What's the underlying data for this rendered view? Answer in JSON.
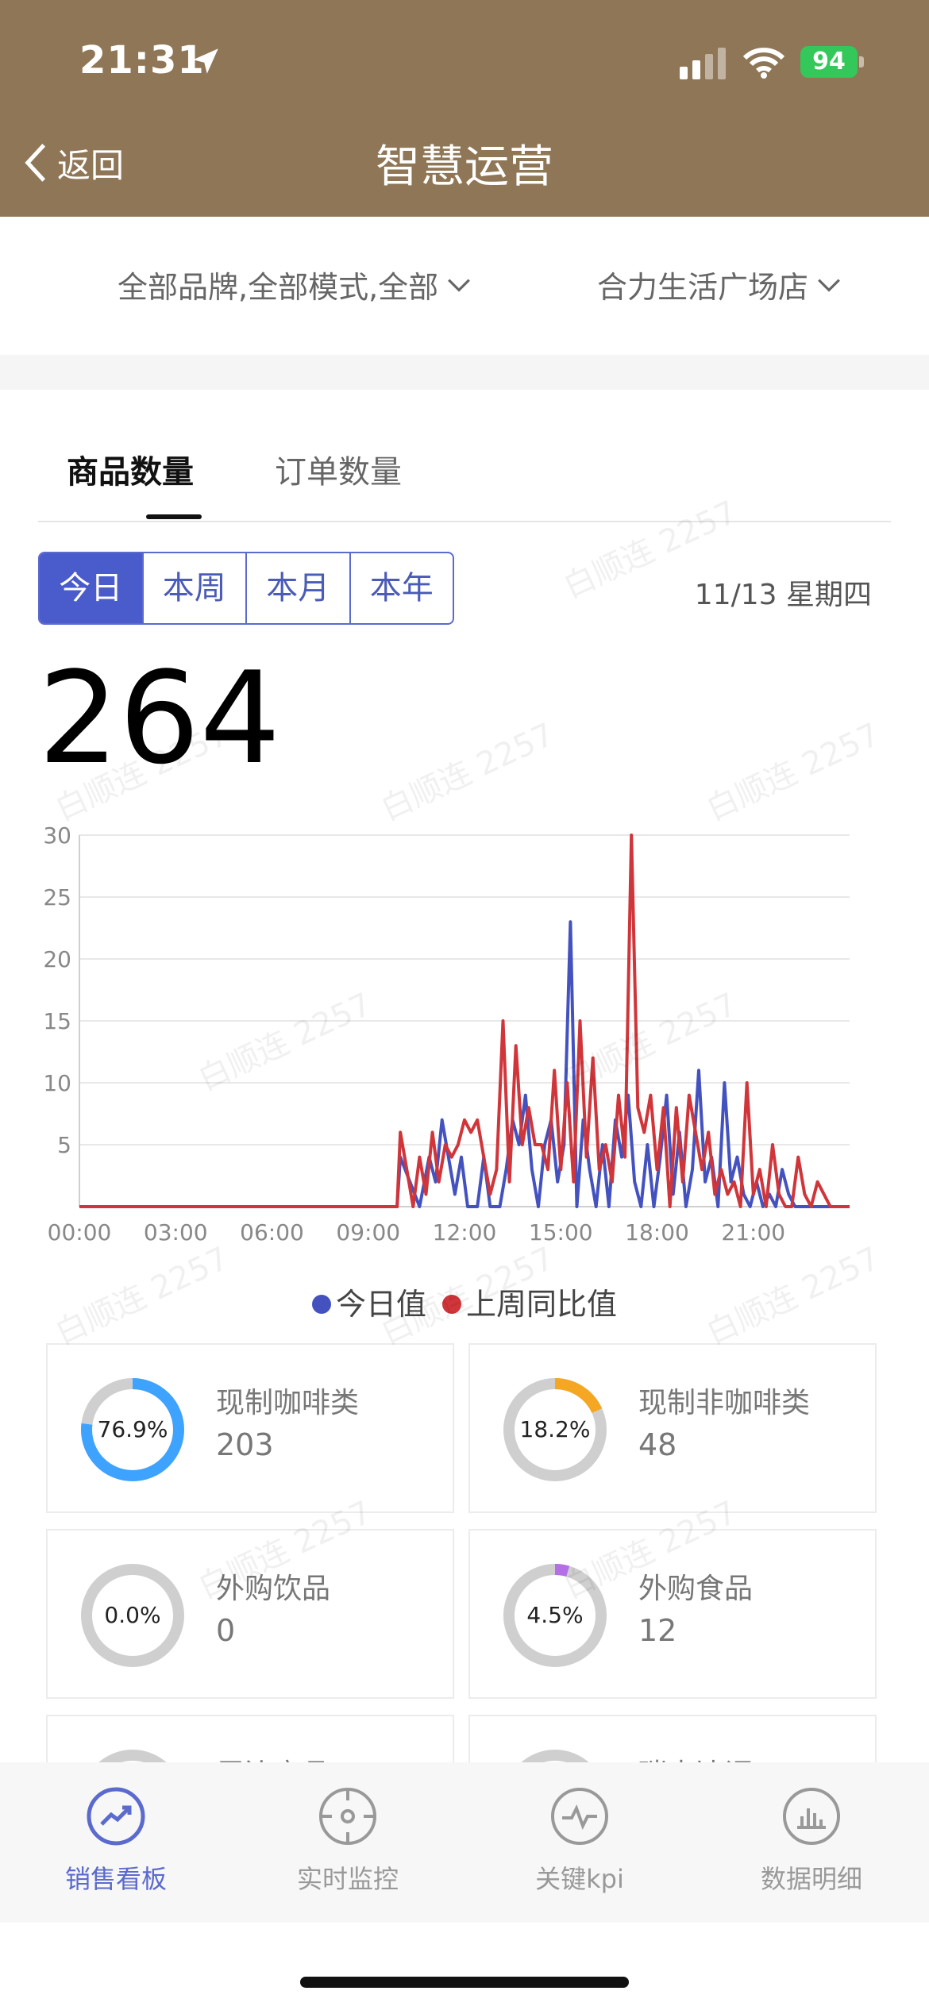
{
  "status_bar": {
    "time": "21:31",
    "battery": "94"
  },
  "header": {
    "back_label": "返回",
    "title": "智慧运营"
  },
  "filters": {
    "brand_mode": "全部品牌,全部模式,全部",
    "store": "合力生活广场店"
  },
  "tabs": [
    {
      "label": "商品数量",
      "active": true
    },
    {
      "label": "订单数量",
      "active": false
    }
  ],
  "periods": [
    {
      "label": "今日",
      "active": true
    },
    {
      "label": "本周"
    },
    {
      "label": "本月"
    },
    {
      "label": "本年"
    }
  ],
  "date_label": "11/13 星期四",
  "total": "264",
  "chart_data": {
    "type": "line",
    "ylim": [
      0,
      30
    ],
    "y_ticks": [
      5,
      10,
      15,
      20,
      25,
      30
    ],
    "x_ticks": [
      "00:00",
      "03:00",
      "06:00",
      "09:00",
      "12:00",
      "15:00",
      "18:00",
      "21:00"
    ],
    "x_range_hours": [
      0,
      24
    ],
    "grid": true,
    "legend_position": "bottom",
    "series": [
      {
        "name": "今日值",
        "color": "#4452c0",
        "points": [
          [
            0,
            0
          ],
          [
            9.9,
            0
          ],
          [
            10,
            4
          ],
          [
            10.3,
            2
          ],
          [
            10.6,
            0
          ],
          [
            10.9,
            4
          ],
          [
            11.1,
            2
          ],
          [
            11.3,
            7
          ],
          [
            11.5,
            4
          ],
          [
            11.7,
            1
          ],
          [
            11.9,
            4
          ],
          [
            12.1,
            0
          ],
          [
            12.4,
            0
          ],
          [
            12.6,
            4
          ],
          [
            12.8,
            0
          ],
          [
            13.1,
            0
          ],
          [
            13.3,
            3
          ],
          [
            13.5,
            7
          ],
          [
            13.7,
            5
          ],
          [
            13.9,
            9
          ],
          [
            14.1,
            3
          ],
          [
            14.3,
            0
          ],
          [
            14.5,
            5
          ],
          [
            14.7,
            7
          ],
          [
            14.9,
            2
          ],
          [
            15.1,
            5
          ],
          [
            15.3,
            23
          ],
          [
            15.5,
            0
          ],
          [
            15.7,
            7
          ],
          [
            15.9,
            3
          ],
          [
            16.1,
            0
          ],
          [
            16.3,
            5
          ],
          [
            16.5,
            0
          ],
          [
            16.7,
            7
          ],
          [
            16.9,
            4
          ],
          [
            17.1,
            9
          ],
          [
            17.3,
            2
          ],
          [
            17.5,
            0
          ],
          [
            17.7,
            5
          ],
          [
            17.9,
            0
          ],
          [
            18.1,
            4
          ],
          [
            18.3,
            9
          ],
          [
            18.5,
            1
          ],
          [
            18.7,
            6
          ],
          [
            18.9,
            0
          ],
          [
            19.1,
            3
          ],
          [
            19.3,
            11
          ],
          [
            19.5,
            2
          ],
          [
            19.7,
            4
          ],
          [
            19.9,
            0
          ],
          [
            20.1,
            10
          ],
          [
            20.3,
            2
          ],
          [
            20.5,
            4
          ],
          [
            20.7,
            1
          ],
          [
            20.9,
            0
          ],
          [
            21.1,
            2
          ],
          [
            21.3,
            0
          ],
          [
            21.5,
            1
          ],
          [
            21.7,
            0
          ],
          [
            21.9,
            3
          ],
          [
            22.1,
            1
          ],
          [
            22.3,
            0
          ],
          [
            24,
            0
          ]
        ]
      },
      {
        "name": "上周同比值",
        "color": "#d0353a",
        "points": [
          [
            0,
            0
          ],
          [
            9.9,
            0
          ],
          [
            10,
            6
          ],
          [
            10.2,
            3
          ],
          [
            10.4,
            0
          ],
          [
            10.6,
            4
          ],
          [
            10.8,
            1
          ],
          [
            11,
            6
          ],
          [
            11.2,
            2
          ],
          [
            11.4,
            5
          ],
          [
            11.6,
            4
          ],
          [
            11.8,
            5
          ],
          [
            12,
            7
          ],
          [
            12.2,
            6
          ],
          [
            12.4,
            7
          ],
          [
            12.6,
            4
          ],
          [
            12.8,
            1
          ],
          [
            13,
            3
          ],
          [
            13.2,
            15
          ],
          [
            13.4,
            2
          ],
          [
            13.6,
            13
          ],
          [
            13.8,
            5
          ],
          [
            14,
            8
          ],
          [
            14.2,
            5
          ],
          [
            14.4,
            5
          ],
          [
            14.6,
            3
          ],
          [
            14.8,
            11
          ],
          [
            15,
            3
          ],
          [
            15.2,
            10
          ],
          [
            15.4,
            2
          ],
          [
            15.6,
            15
          ],
          [
            15.8,
            4
          ],
          [
            16,
            12
          ],
          [
            16.2,
            3
          ],
          [
            16.4,
            5
          ],
          [
            16.6,
            2
          ],
          [
            16.8,
            9
          ],
          [
            17,
            4
          ],
          [
            17.2,
            30
          ],
          [
            17.4,
            8
          ],
          [
            17.6,
            6
          ],
          [
            17.8,
            9
          ],
          [
            18,
            3
          ],
          [
            18.2,
            8
          ],
          [
            18.4,
            0
          ],
          [
            18.6,
            8
          ],
          [
            18.8,
            2
          ],
          [
            19,
            9
          ],
          [
            19.2,
            6
          ],
          [
            19.4,
            3
          ],
          [
            19.6,
            6
          ],
          [
            19.8,
            1
          ],
          [
            20,
            3
          ],
          [
            20.2,
            1
          ],
          [
            20.4,
            2
          ],
          [
            20.6,
            0
          ],
          [
            20.8,
            10
          ],
          [
            21,
            1
          ],
          [
            21.2,
            3
          ],
          [
            21.4,
            0
          ],
          [
            21.6,
            5
          ],
          [
            21.8,
            1
          ],
          [
            22,
            0
          ],
          [
            22.2,
            0
          ],
          [
            22.4,
            4
          ],
          [
            22.6,
            1
          ],
          [
            22.8,
            0
          ],
          [
            23,
            2
          ],
          [
            23.2,
            1
          ],
          [
            23.4,
            0
          ],
          [
            24,
            0
          ]
        ]
      }
    ]
  },
  "categories": [
    {
      "name": "现制咖啡类",
      "count": "203",
      "percent_text": "76.9%",
      "fraction": 0.769,
      "color": "#3ea3ff"
    },
    {
      "name": "现制非咖啡类",
      "count": "48",
      "percent_text": "18.2%",
      "fraction": 0.182,
      "color": "#f5a623"
    },
    {
      "name": "外购饮品",
      "count": "0",
      "percent_text": "0.0%",
      "fraction": 0.0,
      "color": "#cccccc"
    },
    {
      "name": "外购食品",
      "count": "12",
      "percent_text": "4.5%",
      "fraction": 0.045,
      "color": "#b46ee6"
    },
    {
      "name": "周边商品",
      "count": "",
      "percent_text": "",
      "fraction": 0.0,
      "color": "#e09090"
    },
    {
      "name": "瑞幸达调",
      "count": "",
      "percent_text": "",
      "fraction": 0.0,
      "color": "#cccccc"
    }
  ],
  "bottom_nav": [
    {
      "label": "销售看板",
      "icon": "trend-icon",
      "active": true
    },
    {
      "label": "实时监控",
      "icon": "monitor-icon",
      "active": false
    },
    {
      "label": "关键kpi",
      "icon": "kpi-icon",
      "active": false
    },
    {
      "label": "数据明细",
      "icon": "bar-chart-icon",
      "active": false
    }
  ],
  "watermark_text": "白顺连 2257",
  "colors": {
    "header": "#8f7656",
    "accent": "#4a5bcb"
  }
}
